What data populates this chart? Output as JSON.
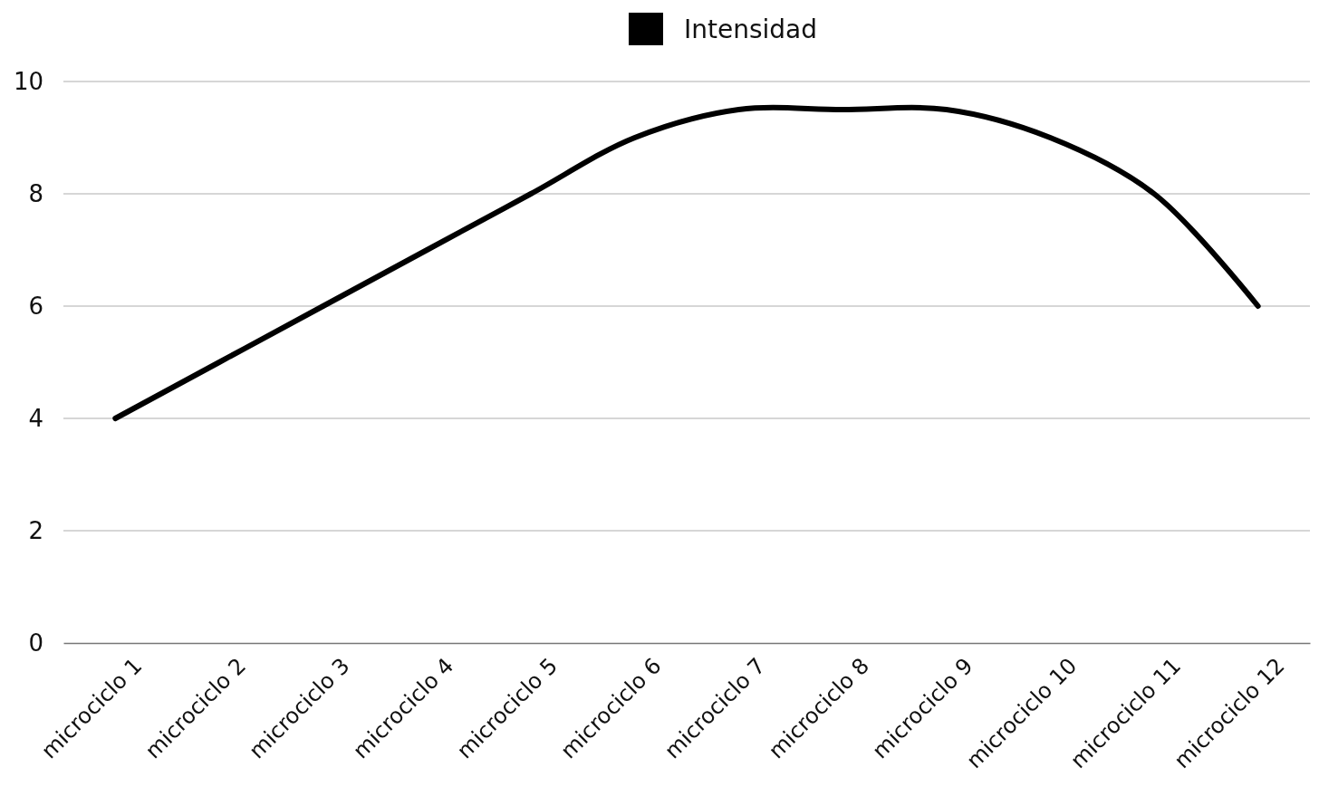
{
  "chart_data": {
    "type": "line",
    "categories": [
      "microciclo 1",
      "microciclo 2",
      "microciclo 3",
      "microciclo 4",
      "microciclo 5",
      "microciclo 6",
      "microciclo 7",
      "microciclo 8",
      "microciclo 9",
      "microciclo 10",
      "microciclo 11",
      "microciclo 12"
    ],
    "series": [
      {
        "name": "Intensidad",
        "color": "#000000",
        "values": [
          4,
          5,
          6,
          7,
          8,
          9,
          9.5,
          9.5,
          9.5,
          9,
          8,
          6
        ]
      }
    ],
    "ylim": [
      0,
      10
    ],
    "yticks": [
      0,
      2,
      4,
      6,
      8,
      10
    ],
    "grid": "y",
    "legend": "top",
    "marker": "none"
  }
}
